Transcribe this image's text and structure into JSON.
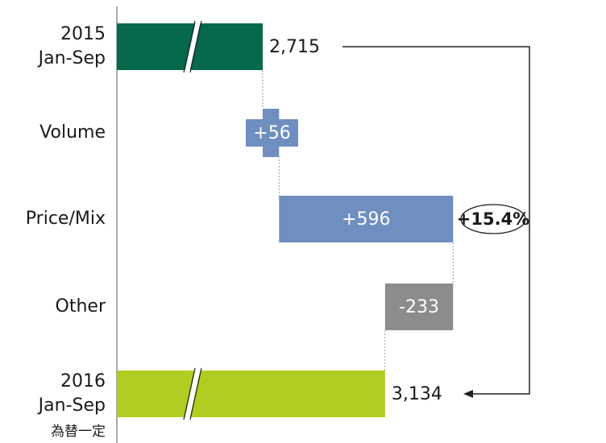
{
  "chart_data": {
    "type": "waterfall",
    "categories": [
      [
        "2015",
        "Jan-Sep"
      ],
      [
        "Volume"
      ],
      [
        "Price/Mix"
      ],
      [
        "Other"
      ],
      [
        "2016",
        "Jan-Sep",
        "為替一定"
      ]
    ],
    "values": [
      2715,
      56,
      596,
      -233,
      3134
    ],
    "value_labels": [
      "2,715",
      "+56",
      "+596",
      "-233",
      "3,134"
    ],
    "kinds": [
      "total",
      "delta",
      "delta",
      "delta",
      "total"
    ],
    "colors": [
      "#07694c",
      "#6f8fc0",
      "#6f8fc0",
      "#8c8c8c",
      "#b1cd22"
    ],
    "annotation": "+15.4%"
  }
}
